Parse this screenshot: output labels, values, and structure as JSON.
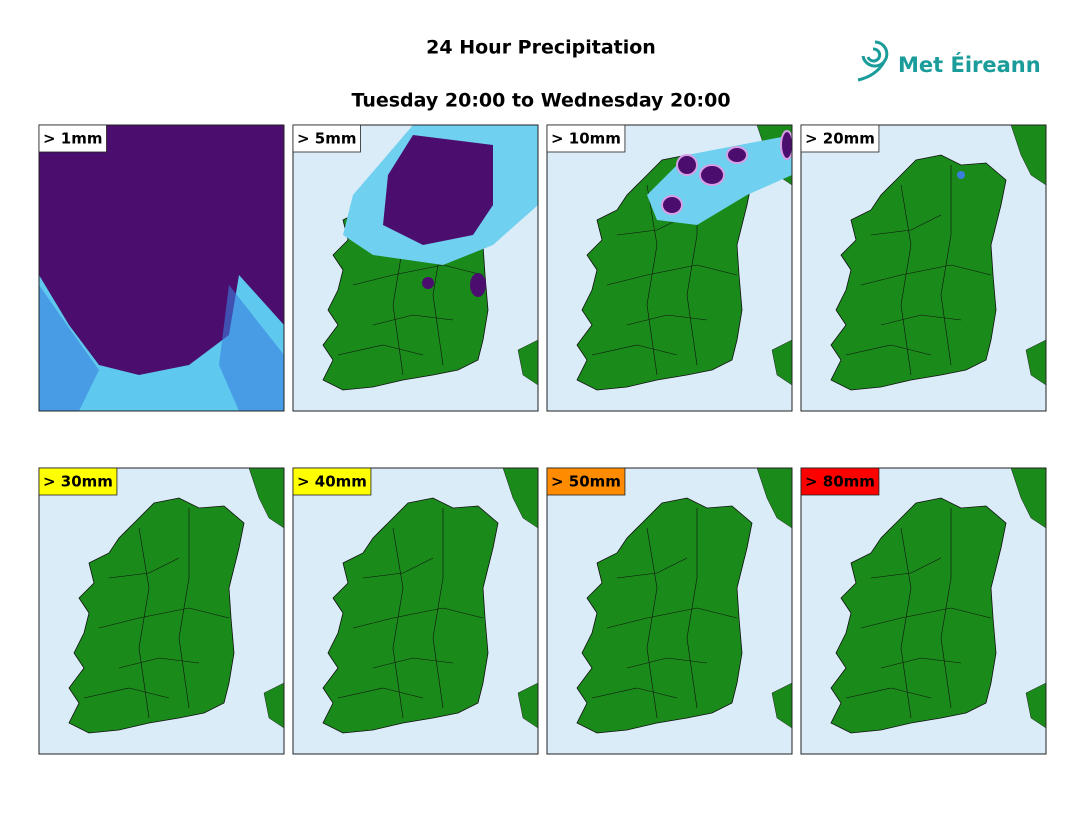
{
  "header": {
    "title": "24 Hour Precipitation",
    "subtitle": "Tuesday 20:00 to Wednesday 20:00",
    "logo": "Met Éireann"
  },
  "panels": [
    {
      "label": "> 1mm",
      "label_color": "#ffffff"
    },
    {
      "label": "> 5mm",
      "label_color": "#ffffff"
    },
    {
      "label": "> 10mm",
      "label_color": "#ffffff"
    },
    {
      "label": "> 20mm",
      "label_color": "#ffffff"
    },
    {
      "label": "> 30mm",
      "label_color": "#ffff00"
    },
    {
      "label": "> 40mm",
      "label_color": "#ffff00"
    },
    {
      "label": "> 50mm",
      "label_color": "#ff8c00"
    },
    {
      "label": "> 80mm",
      "label_color": "#ff0000"
    }
  ]
}
